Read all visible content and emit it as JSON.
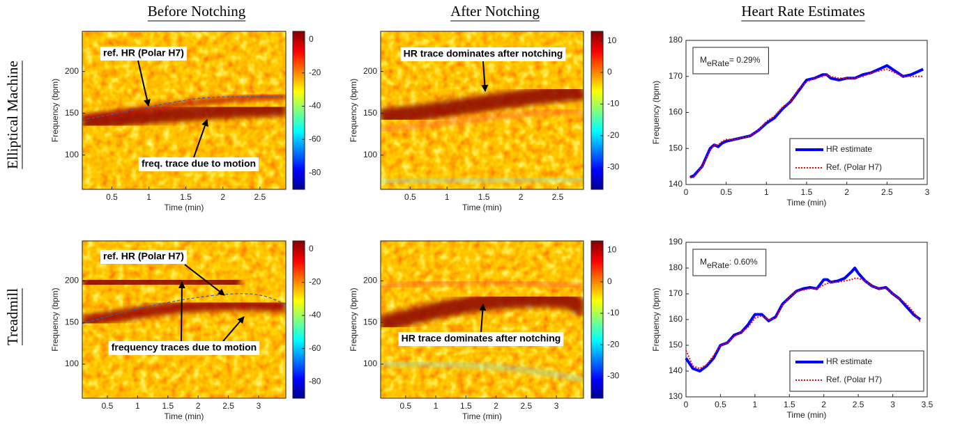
{
  "column_titles": [
    "Before Notching",
    "After Notching",
    "Heart Rate Estimates"
  ],
  "row_titles": [
    "Elliptical Machine",
    "Treadmill"
  ],
  "chart_data": [
    {
      "type": "spectrogram",
      "xlabel": "Time (min)",
      "ylabel": "Frequency (bpm)",
      "xlim": [
        0.1,
        2.85
      ],
      "xticks": [
        0.5,
        1,
        1.5,
        2,
        2.5
      ],
      "ylim": [
        59,
        248
      ],
      "yticks": [
        100,
        150,
        200
      ],
      "clim": [
        -90,
        5
      ],
      "cticks": [
        -80,
        -60,
        -40,
        -20,
        0
      ],
      "annotations": [
        "ref. HR (Polar H7)",
        "freq. trace due to motion"
      ]
    },
    {
      "type": "spectrogram",
      "xlabel": "Time (min)",
      "ylabel": "Frequency (bpm)",
      "xlim": [
        0.1,
        2.85
      ],
      "xticks": [
        0.5,
        1,
        1.5,
        2,
        2.5
      ],
      "ylim": [
        59,
        248
      ],
      "yticks": [
        100,
        150,
        200
      ],
      "clim": [
        -37,
        13
      ],
      "cticks": [
        -30,
        -20,
        -10,
        0,
        10
      ],
      "annotations": [
        "HR trace dominates after notching"
      ]
    },
    {
      "type": "line",
      "xlabel": "Time (min)",
      "ylabel": "Frequency (bpm)",
      "xlim": [
        0,
        3
      ],
      "xticks": [
        0,
        0.5,
        1,
        1.5,
        2,
        2.5,
        3
      ],
      "ylim": [
        140,
        180
      ],
      "yticks": [
        140,
        150,
        160,
        170,
        180
      ],
      "legend": "lower right",
      "annotation": {
        "symbol": "M",
        "subscript": "eRate",
        "text": "= 0.29%"
      },
      "x": [
        0.05,
        0.1,
        0.2,
        0.3,
        0.35,
        0.4,
        0.45,
        0.5,
        0.6,
        0.7,
        0.8,
        0.9,
        1.0,
        1.1,
        1.2,
        1.3,
        1.4,
        1.5,
        1.6,
        1.7,
        1.75,
        1.8,
        1.9,
        2.0,
        2.1,
        2.2,
        2.3,
        2.4,
        2.5,
        2.6,
        2.7,
        2.8,
        2.9,
        2.95
      ],
      "series": [
        {
          "name": "HR estimate",
          "color": "#0000ff",
          "style": "solid",
          "values": [
            142,
            142.5,
            145,
            150,
            151,
            150.5,
            151.5,
            152,
            152.5,
            153,
            153.5,
            155,
            157,
            158.5,
            161,
            163,
            166,
            169,
            169.5,
            170.5,
            170.5,
            169.5,
            169,
            169.5,
            169.5,
            170.5,
            171,
            172,
            173,
            171.5,
            170,
            170.5,
            171.5,
            172
          ]
        },
        {
          "name": "Ref. (Polar H7)",
          "color": "#ff0000",
          "style": "dotted",
          "values": [
            142,
            142,
            145,
            149.5,
            151,
            151,
            152,
            152.5,
            152.5,
            153,
            153.5,
            155,
            157.5,
            159,
            161.5,
            163,
            166.5,
            168.5,
            169.5,
            170,
            170.5,
            170,
            169.5,
            169.5,
            169.5,
            170,
            171,
            171.5,
            172,
            171,
            170,
            170,
            170,
            170
          ]
        }
      ]
    },
    {
      "type": "spectrogram",
      "xlabel": "Time (min)",
      "ylabel": "Frequency (bpm)",
      "xlim": [
        0.085,
        3.45
      ],
      "xticks": [
        0.5,
        1,
        1.5,
        2,
        2.5,
        3
      ],
      "ylim": [
        59,
        248
      ],
      "yticks": [
        100,
        150,
        200
      ],
      "clim": [
        -90,
        5
      ],
      "cticks": [
        -80,
        -60,
        -40,
        -20,
        0
      ],
      "annotations": [
        "ref. HR (Polar H7)",
        "frequency traces due to motion"
      ]
    },
    {
      "type": "spectrogram",
      "xlabel": "Time (min)",
      "ylabel": "Frequency (bpm)",
      "xlim": [
        0.085,
        3.45
      ],
      "xticks": [
        0.5,
        1,
        1.5,
        2,
        2.5,
        3
      ],
      "ylim": [
        59,
        248
      ],
      "yticks": [
        100,
        150,
        200
      ],
      "clim": [
        -37,
        13
      ],
      "cticks": [
        -30,
        -20,
        -10,
        0,
        10
      ],
      "annotations": [
        "HR trace dominates after notching"
      ]
    },
    {
      "type": "line",
      "xlabel": "Time (min)",
      "ylabel": "Frequency (bpm)",
      "xlim": [
        0,
        3.5
      ],
      "xticks": [
        0,
        0.5,
        1,
        1.5,
        2,
        2.5,
        3,
        3.5
      ],
      "ylim": [
        130,
        190
      ],
      "yticks": [
        130,
        140,
        150,
        160,
        170,
        180,
        190
      ],
      "legend": "lower right",
      "annotation": {
        "symbol": "M",
        "subscript": "eRate",
        "text": ": 0.60%"
      },
      "x": [
        0,
        0.1,
        0.2,
        0.3,
        0.4,
        0.5,
        0.6,
        0.7,
        0.8,
        0.9,
        1.0,
        1.1,
        1.2,
        1.3,
        1.4,
        1.5,
        1.6,
        1.7,
        1.8,
        1.9,
        2.0,
        2.05,
        2.1,
        2.2,
        2.3,
        2.4,
        2.45,
        2.5,
        2.6,
        2.7,
        2.8,
        2.9,
        3.0,
        3.1,
        3.2,
        3.3,
        3.4
      ],
      "series": [
        {
          "name": "HR estimate",
          "color": "#0000ff",
          "style": "solid",
          "values": [
            145,
            141,
            140,
            142,
            145,
            150,
            151,
            154,
            155,
            158,
            162,
            162,
            159.5,
            161,
            166,
            168.5,
            171,
            172,
            172.5,
            172,
            175.5,
            175.5,
            174.5,
            175,
            176,
            178.5,
            180,
            178,
            175,
            173,
            172,
            172.5,
            170,
            168,
            165,
            162,
            160
          ]
        },
        {
          "name": "Ref. (Polar H7)",
          "color": "#ff0000",
          "style": "dotted",
          "values": [
            148,
            142,
            141,
            142.5,
            146,
            150,
            151,
            153.5,
            155,
            157,
            160.5,
            161.5,
            160,
            160.5,
            165.5,
            168.5,
            171,
            171.5,
            172,
            172,
            173.5,
            174,
            174.5,
            174.5,
            175,
            175.5,
            176,
            176,
            175,
            173,
            172,
            172,
            170,
            168,
            166,
            163,
            159
          ]
        }
      ]
    }
  ]
}
